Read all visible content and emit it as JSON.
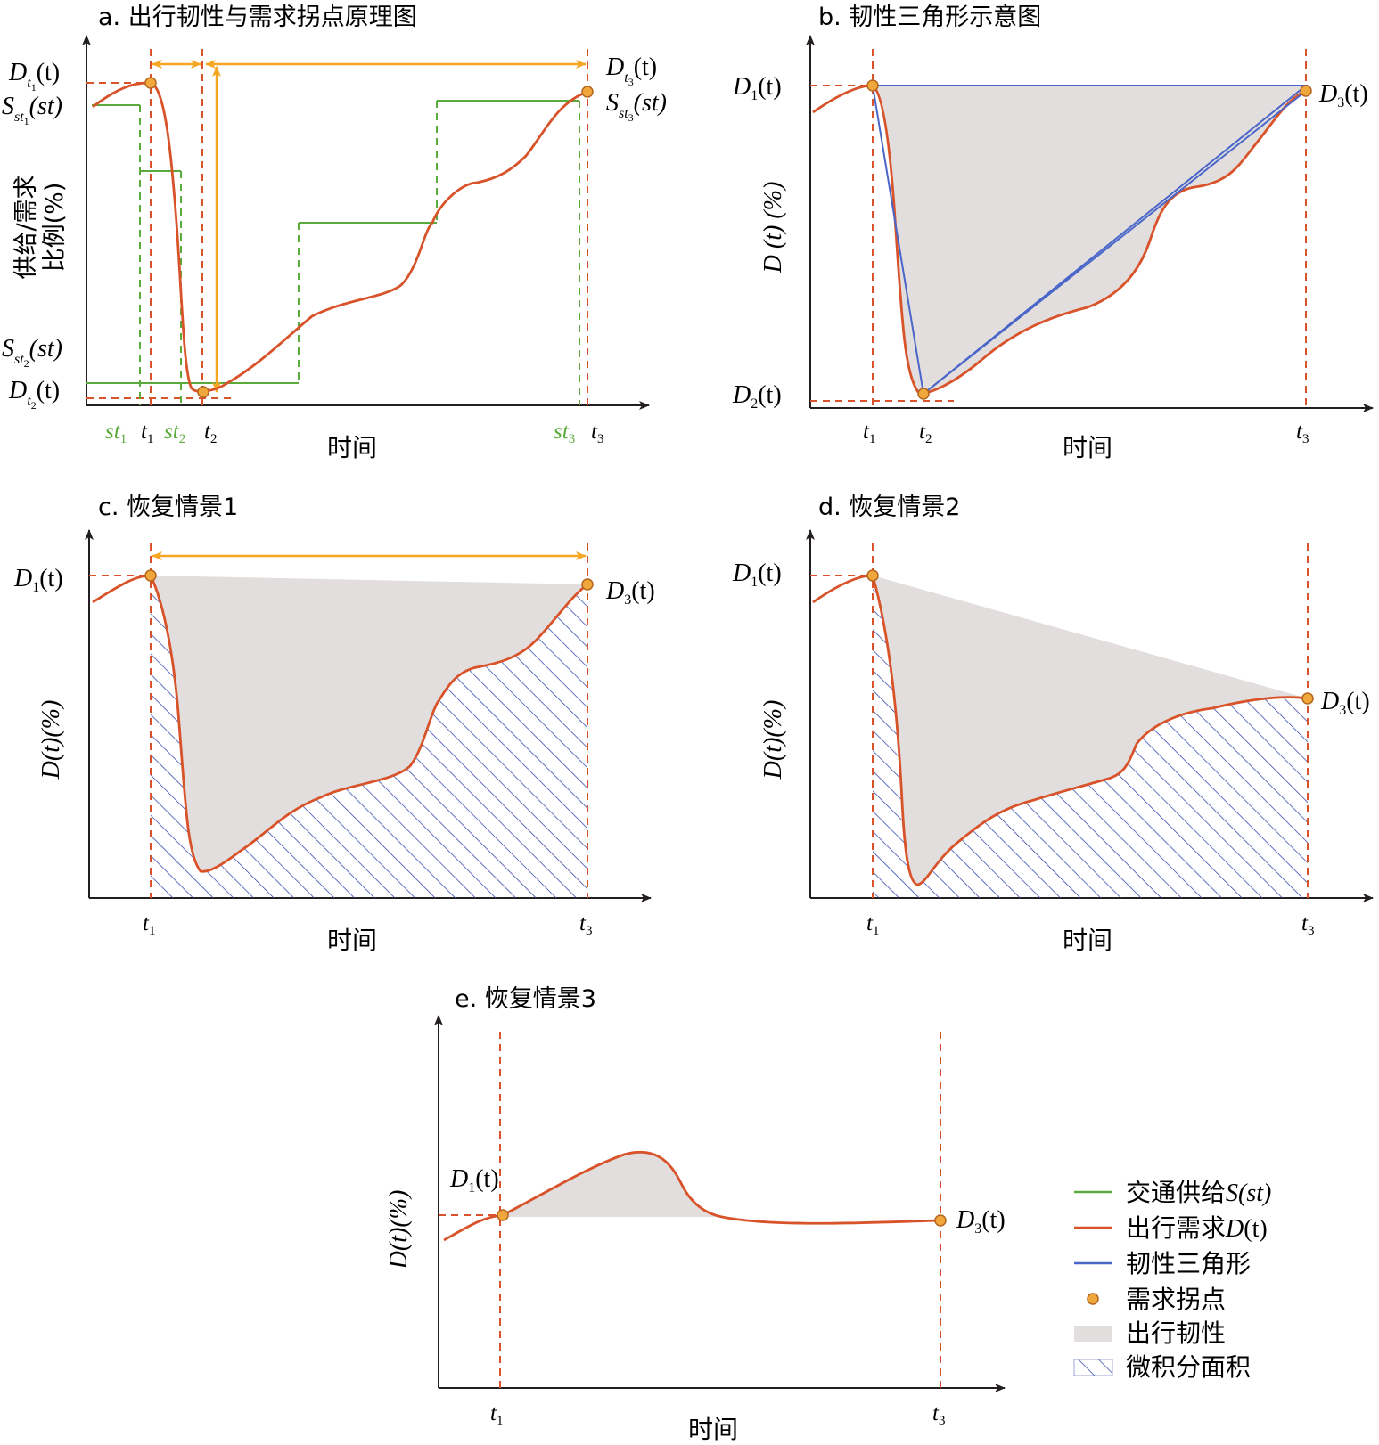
{
  "colors": {
    "supply": "#5aaa3c",
    "demand": "#d8532a",
    "triangle": "#4a66c8",
    "inflection_fill": "#f0a83c",
    "inflection_stroke": "#b5651d",
    "resilience_fill": "#e2dedd",
    "hatch": "#3b4fb0",
    "orange_arrow": "#f5a623",
    "axis": "#231f20",
    "guide": "#d8532a",
    "green_label": "#5aaa3c"
  },
  "common": {
    "x_axis_label": "时间"
  },
  "panel_a": {
    "title": "a. 出行韧性与需求拐点原理图",
    "y_axis_label_line1": "供给/需求",
    "y_axis_label_line2": "比例(%)",
    "label_Dt1": {
      "main": "D",
      "sub": "t1",
      "tail": "(t)"
    },
    "label_Sst1": {
      "main": "S",
      "sub": "st1",
      "tail": "(st)"
    },
    "label_Sst2": {
      "main": "S",
      "sub": "st2",
      "tail": "(st)"
    },
    "label_Dt2": {
      "main": "D",
      "sub": "t2",
      "tail": "(t)"
    },
    "label_Dt3": {
      "main": "D",
      "sub": "t3",
      "tail": "(t)"
    },
    "label_Sst3": {
      "main": "S",
      "sub": "st3",
      "tail": "(st)"
    },
    "x_ticks": [
      {
        "main": "st",
        "sub": "1",
        "green": true
      },
      {
        "main": "t",
        "sub": "1",
        "green": false
      },
      {
        "main": "st",
        "sub": "2",
        "green": true
      },
      {
        "main": "t",
        "sub": "2",
        "green": false
      },
      {
        "main": "st",
        "sub": "3",
        "green": true
      },
      {
        "main": "t",
        "sub": "3",
        "green": false
      }
    ]
  },
  "panel_b": {
    "title": "b. 韧性三角形示意图",
    "y_axis_label": "D (t) (%)",
    "label_D1": {
      "main": "D",
      "sub": "1",
      "tail": "(t)"
    },
    "label_D2": {
      "main": "D",
      "sub": "2",
      "tail": "(t)"
    },
    "label_D3": {
      "main": "D",
      "sub": "3",
      "tail": "(t)"
    },
    "x_ticks": [
      {
        "main": "t",
        "sub": "1"
      },
      {
        "main": "t",
        "sub": "2"
      },
      {
        "main": "t",
        "sub": "3"
      }
    ]
  },
  "panel_c": {
    "title": "c. 恢复情景1",
    "y_axis_label": "D(t)(%)",
    "label_D1": {
      "main": "D",
      "sub": "1",
      "tail": "(t)"
    },
    "label_D3": {
      "main": "D",
      "sub": "3",
      "tail": "(t)"
    },
    "x_ticks": [
      {
        "main": "t",
        "sub": "1"
      },
      {
        "main": "t",
        "sub": "3"
      }
    ]
  },
  "panel_d": {
    "title": "d. 恢复情景2",
    "y_axis_label": "D(t)(%)",
    "label_D1": {
      "main": "D",
      "sub": "1",
      "tail": "(t)"
    },
    "label_D3": {
      "main": "D",
      "sub": "3",
      "tail": "(t)"
    },
    "x_ticks": [
      {
        "main": "t",
        "sub": "1"
      },
      {
        "main": "t",
        "sub": "3"
      }
    ]
  },
  "panel_e": {
    "title": "e. 恢复情景3",
    "y_axis_label": "D(t)(%)",
    "label_D1": {
      "main": "D",
      "sub": "1",
      "tail": "(t)"
    },
    "label_D3": {
      "main": "D",
      "sub": "3",
      "tail": "(t)"
    },
    "x_ticks": [
      {
        "main": "t",
        "sub": "1"
      },
      {
        "main": "t",
        "sub": "3"
      }
    ]
  },
  "legend": {
    "items": [
      {
        "symbol": "green-line",
        "text": "交通供给",
        "italic": "S",
        "tail": "(st)"
      },
      {
        "symbol": "red-line",
        "text": "出行需求",
        "italic": "D",
        "tail": "(t)"
      },
      {
        "symbol": "blue-line",
        "text": "韧性三角形",
        "italic": "",
        "tail": ""
      },
      {
        "symbol": "orange-dot",
        "text": "需求拐点",
        "italic": "",
        "tail": ""
      },
      {
        "symbol": "gray-box",
        "text": "出行韧性",
        "italic": "",
        "tail": ""
      },
      {
        "symbol": "hatch-box",
        "text": "微积分面积",
        "italic": "",
        "tail": ""
      }
    ]
  }
}
